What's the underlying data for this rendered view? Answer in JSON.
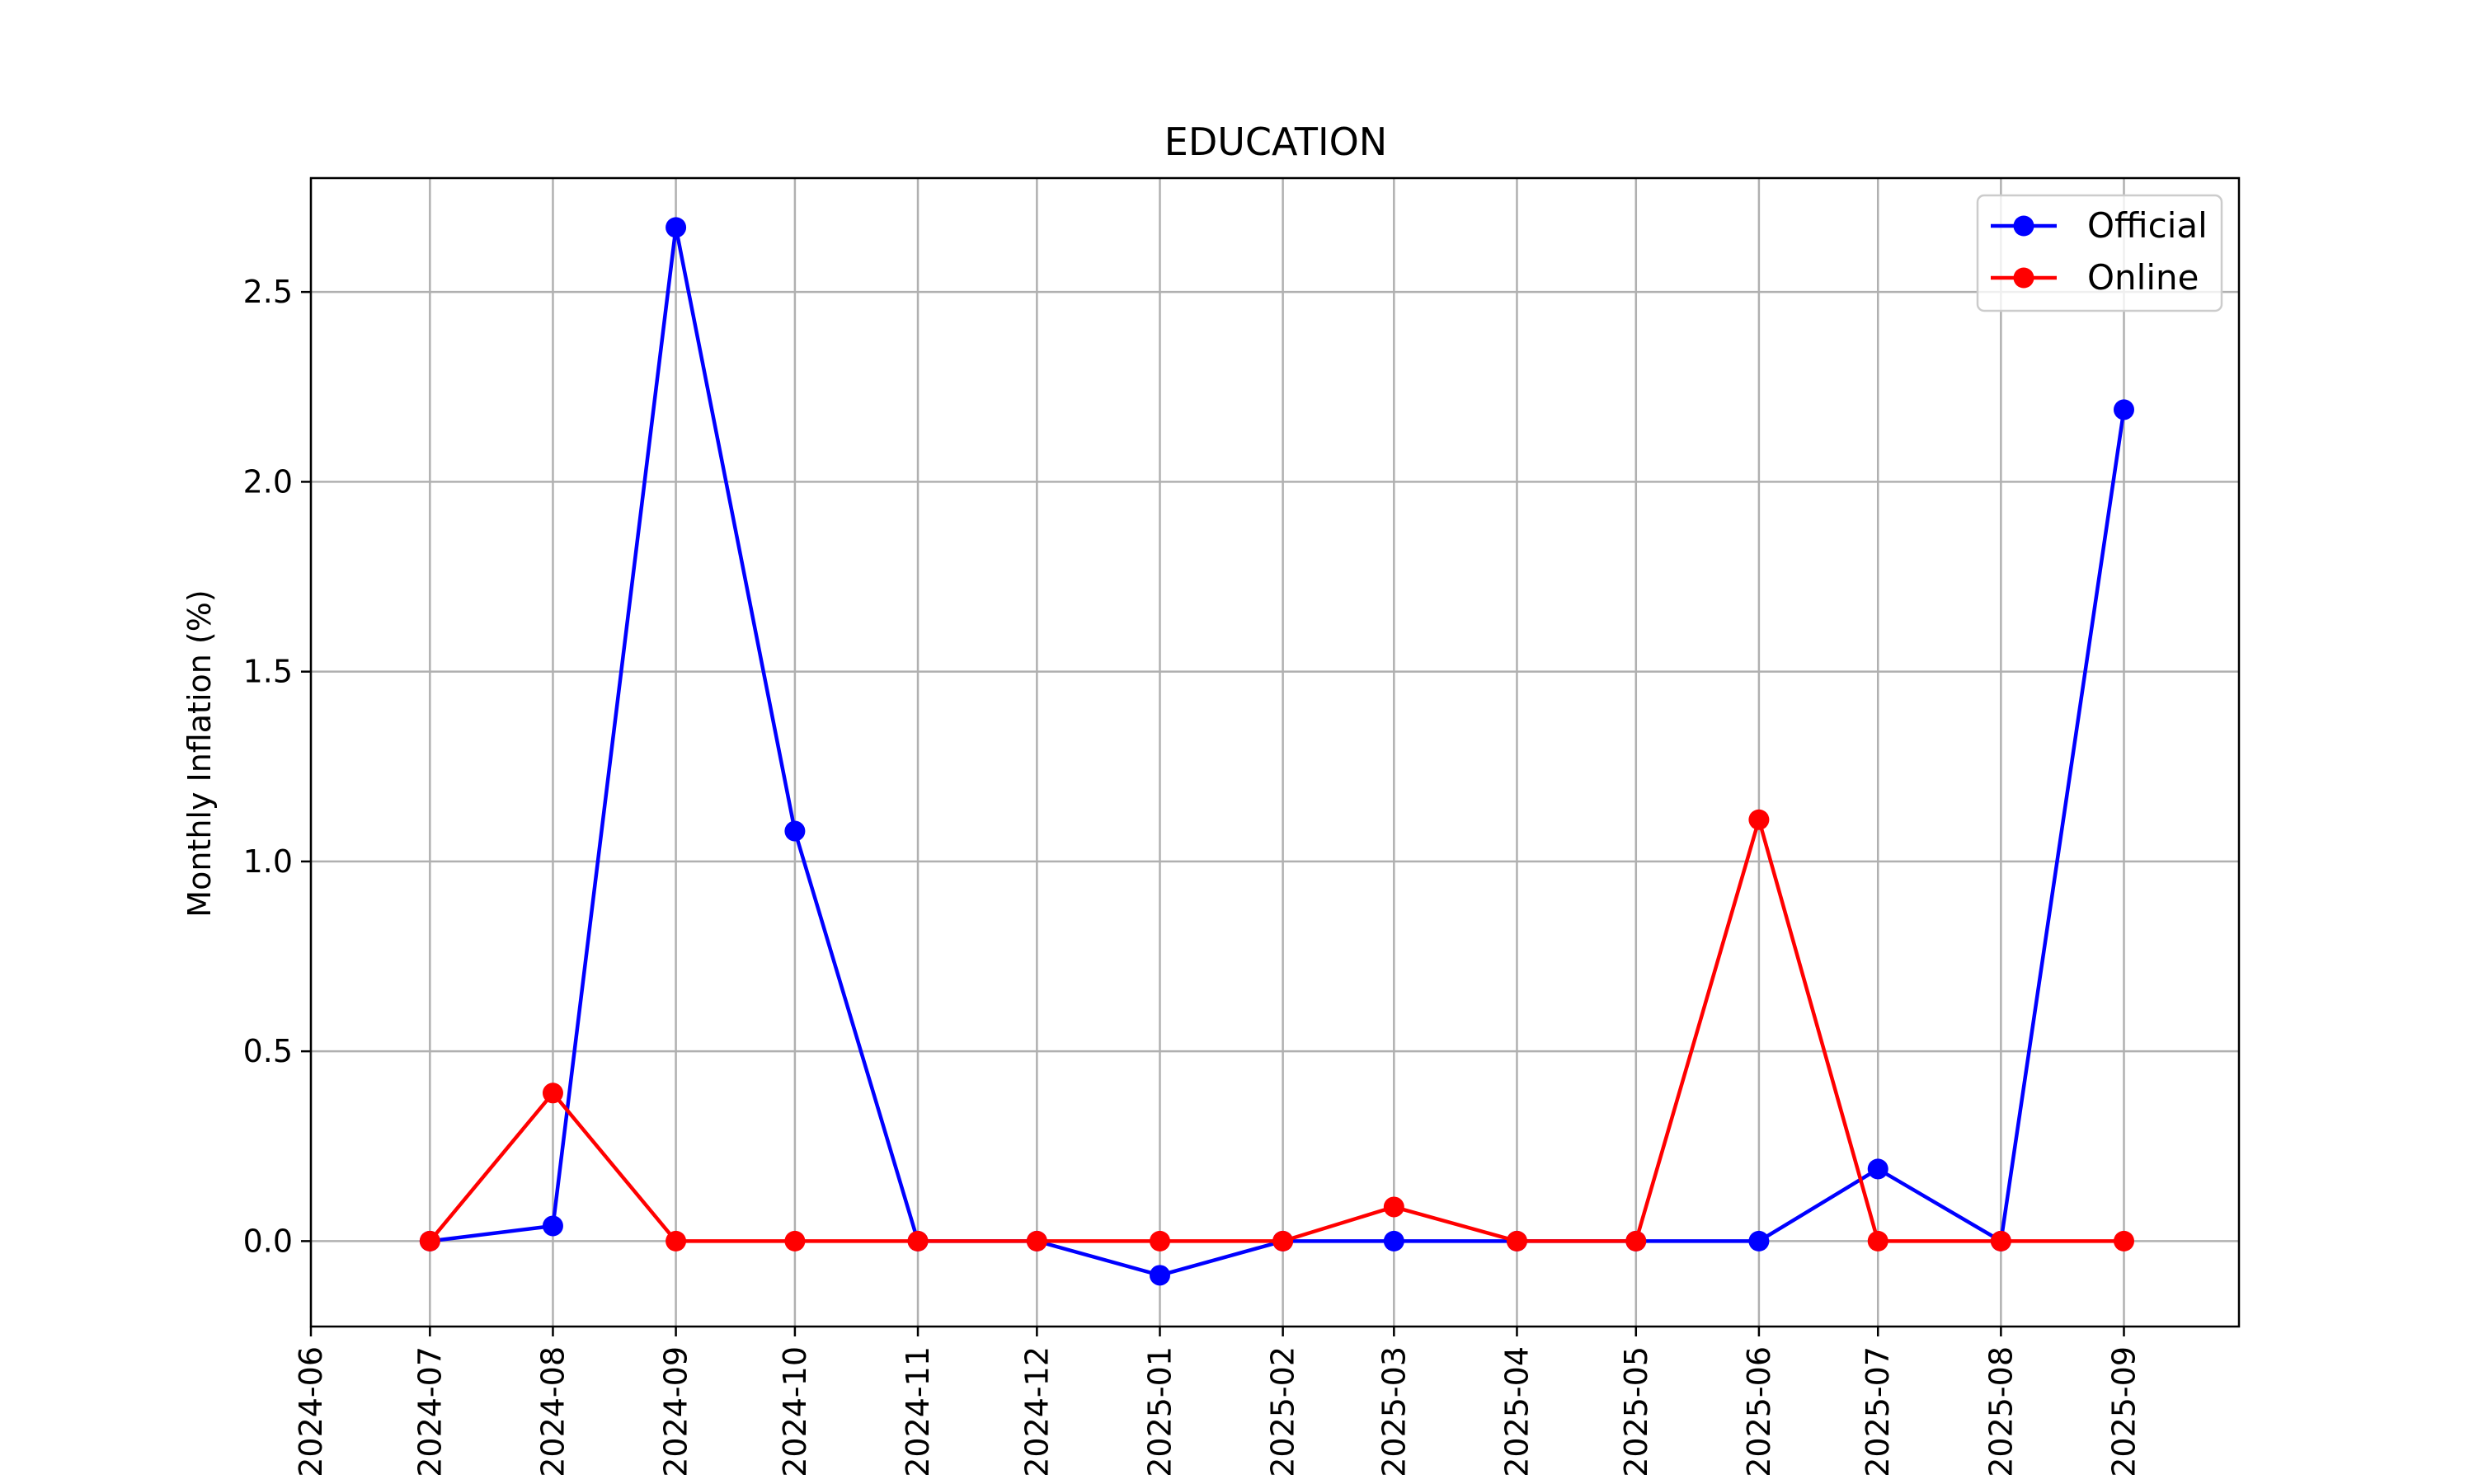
{
  "chart_data": {
    "type": "line",
    "title": "EDUCATION",
    "xlabel": "",
    "ylabel": "Monthly Inflation (%)",
    "x_ticks": [
      "2024-06",
      "2024-07",
      "2024-08",
      "2024-09",
      "2024-10",
      "2024-11",
      "2024-12",
      "2025-01",
      "2025-02",
      "2025-03",
      "2025-04",
      "2025-05",
      "2025-06",
      "2025-07",
      "2025-08",
      "2025-09"
    ],
    "y_ticks": [
      "0.0",
      "0.5",
      "1.0",
      "1.5",
      "2.0",
      "2.5"
    ],
    "ylim": [
      -0.225,
      2.8
    ],
    "xlim": [
      "2024-06-01",
      "2025-09-30"
    ],
    "grid": true,
    "legend_position": "top-right",
    "series": [
      {
        "name": "Official",
        "color": "#0000ff",
        "x": [
          "2024-07",
          "2024-08",
          "2024-09",
          "2024-10",
          "2024-11",
          "2024-12",
          "2025-01",
          "2025-02",
          "2025-03",
          "2025-04",
          "2025-05",
          "2025-06",
          "2025-07",
          "2025-08",
          "2025-09"
        ],
        "values": [
          0.0,
          0.04,
          2.67,
          1.08,
          0.0,
          0.0,
          -0.09,
          0.0,
          0.0,
          0.0,
          0.0,
          0.0,
          0.19,
          0.0,
          2.19
        ]
      },
      {
        "name": "Online",
        "color": "#ff0000",
        "x": [
          "2024-07",
          "2024-08",
          "2024-09",
          "2024-10",
          "2024-11",
          "2024-12",
          "2025-01",
          "2025-02",
          "2025-03",
          "2025-04",
          "2025-05",
          "2025-06",
          "2025-07",
          "2025-08",
          "2025-09"
        ],
        "values": [
          0.0,
          0.39,
          0.0,
          0.0,
          0.0,
          0.0,
          0.0,
          0.0,
          0.09,
          0.0,
          0.0,
          1.11,
          0.0,
          0.0,
          0.0
        ]
      }
    ]
  }
}
